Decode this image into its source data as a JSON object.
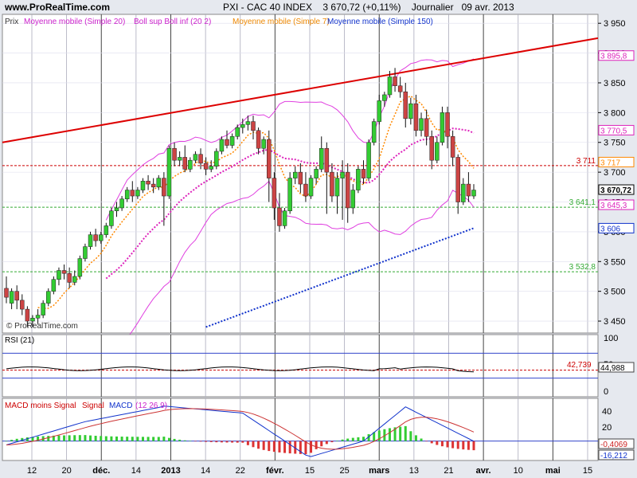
{
  "header": {
    "site": "www.ProRealTime.com",
    "symbol": "PXI - CAC 40 INDEX",
    "last": "3 670,72 (+0,11%)",
    "period": "Journalier",
    "date": "09 avr. 2013"
  },
  "watermark": "© ProRealTime.com",
  "legend": {
    "prix": "Prix",
    "mm20": "Moyenne mobile (Simple 20)",
    "boll": "Boll sup Boll inf (20 2)",
    "mm7": "Moyenne mobile (Simple 7)",
    "mm150": "Moyenne mobile (Simple 150)"
  },
  "colors": {
    "up": "#33cc33",
    "down": "#cc4444",
    "boll": "#e040e0",
    "mm20": "#dd22bb",
    "mm7": "#ff8800",
    "mm150": "#1133cc",
    "trend": "#dd0000"
  },
  "levels": {
    "r1": "3 711",
    "s1": "3 641,1",
    "s2": "3 532,8"
  },
  "axis_price": [
    "3 950",
    "3 900",
    "3 850",
    "3 800",
    "3 750",
    "3 700",
    "3 650",
    "3 600",
    "3 550",
    "3 500",
    "3 450"
  ],
  "axis_price_vals": [
    3950,
    3900,
    3850,
    3800,
    3750,
    3700,
    3650,
    3600,
    3550,
    3500,
    3450
  ],
  "price_tags": [
    {
      "text": "3 895,8",
      "value": 3895.8,
      "color": "#dd22bb"
    },
    {
      "text": "3 770,5",
      "value": 3770.5,
      "color": "#dd22bb"
    },
    {
      "text": "3 717",
      "value": 3717,
      "color": "#ff8800"
    },
    {
      "text": "3 670,72",
      "value": 3670.72,
      "color": "#000000"
    },
    {
      "text": "3 645,3",
      "value": 3645.3,
      "color": "#dd22bb"
    },
    {
      "text": "3 606",
      "value": 3606,
      "color": "#1133cc"
    }
  ],
  "rsi": {
    "label": "RSI (21)",
    "axis": [
      "100",
      "50",
      "0"
    ],
    "tag": "44,988",
    "level": "42,739"
  },
  "macd": {
    "label1": "MACD moins Signal",
    "label2": "Signal",
    "label3": "MACD",
    "label4": "(12 26 9)",
    "axis": [
      "40",
      "20",
      "0",
      "-20"
    ],
    "tag1": "-0,4069",
    "tag2": "-16,212"
  },
  "x_ticks": [
    {
      "label": "12",
      "bold": false
    },
    {
      "label": "20",
      "bold": false
    },
    {
      "label": "déc.",
      "bold": true
    },
    {
      "label": "14",
      "bold": false
    },
    {
      "label": "2013",
      "bold": true
    },
    {
      "label": "14",
      "bold": false
    },
    {
      "label": "22",
      "bold": false
    },
    {
      "label": "févr.",
      "bold": true
    },
    {
      "label": "15",
      "bold": false
    },
    {
      "label": "25",
      "bold": false
    },
    {
      "label": "mars",
      "bold": true
    },
    {
      "label": "13",
      "bold": false
    },
    {
      "label": "21",
      "bold": false
    },
    {
      "label": "avr.",
      "bold": true
    },
    {
      "label": "10",
      "bold": false
    },
    {
      "label": "mai",
      "bold": true
    },
    {
      "label": "15",
      "bold": false
    }
  ],
  "chart_data": {
    "type": "candlestick",
    "title": "PXI - CAC 40 INDEX 3 670,72 (+0,11%) Journalier 09 avr. 2013",
    "ylim": [
      3430,
      3965
    ],
    "candles": [
      [
        3505,
        3525,
        3490,
        3480
      ],
      [
        3480,
        3505,
        3500,
        3470
      ],
      [
        3500,
        3510,
        3485,
        3470
      ],
      [
        3485,
        3495,
        3470,
        3460
      ],
      [
        3470,
        3475,
        3450,
        3440
      ],
      [
        3450,
        3460,
        3455,
        3440
      ],
      [
        3455,
        3470,
        3460,
        3445
      ],
      [
        3460,
        3485,
        3480,
        3455
      ],
      [
        3480,
        3505,
        3500,
        3475
      ],
      [
        3500,
        3525,
        3520,
        3495
      ],
      [
        3520,
        3540,
        3535,
        3510
      ],
      [
        3535,
        3545,
        3530,
        3520
      ],
      [
        3530,
        3540,
        3515,
        3505
      ],
      [
        3515,
        3535,
        3525,
        3510
      ],
      [
        3525,
        3560,
        3555,
        3520
      ],
      [
        3555,
        3580,
        3575,
        3550
      ],
      [
        3575,
        3600,
        3595,
        3570
      ],
      [
        3595,
        3605,
        3585,
        3575
      ],
      [
        3585,
        3600,
        3595,
        3580
      ],
      [
        3595,
        3615,
        3610,
        3590
      ],
      [
        3610,
        3640,
        3635,
        3605
      ],
      [
        3635,
        3650,
        3640,
        3625
      ],
      [
        3640,
        3660,
        3655,
        3635
      ],
      [
        3655,
        3675,
        3670,
        3650
      ],
      [
        3670,
        3685,
        3660,
        3650
      ],
      [
        3660,
        3675,
        3670,
        3655
      ],
      [
        3670,
        3690,
        3685,
        3665
      ],
      [
        3685,
        3695,
        3680,
        3670
      ],
      [
        3680,
        3690,
        3675,
        3665
      ],
      [
        3675,
        3695,
        3690,
        3670
      ],
      [
        3690,
        3700,
        3660,
        3610
      ],
      [
        3660,
        3745,
        3740,
        3655
      ],
      [
        3740,
        3750,
        3720,
        3710
      ],
      [
        3720,
        3735,
        3725,
        3710
      ],
      [
        3725,
        3745,
        3705,
        3700
      ],
      [
        3705,
        3725,
        3720,
        3700
      ],
      [
        3720,
        3735,
        3730,
        3715
      ],
      [
        3730,
        3740,
        3715,
        3705
      ],
      [
        3715,
        3725,
        3705,
        3695
      ],
      [
        3705,
        3720,
        3710,
        3700
      ],
      [
        3710,
        3740,
        3735,
        3705
      ],
      [
        3735,
        3760,
        3755,
        3730
      ],
      [
        3755,
        3770,
        3745,
        3740
      ],
      [
        3745,
        3765,
        3760,
        3740
      ],
      [
        3760,
        3780,
        3775,
        3755
      ],
      [
        3775,
        3790,
        3780,
        3765
      ],
      [
        3780,
        3795,
        3785,
        3770
      ],
      [
        3785,
        3795,
        3770,
        3755
      ],
      [
        3770,
        3775,
        3740,
        3730
      ],
      [
        3740,
        3760,
        3755,
        3730
      ],
      [
        3755,
        3770,
        3690,
        3650
      ],
      [
        3690,
        3700,
        3640,
        3620
      ],
      [
        3640,
        3665,
        3610,
        3600
      ],
      [
        3610,
        3640,
        3635,
        3605
      ],
      [
        3635,
        3700,
        3690,
        3630
      ],
      [
        3690,
        3710,
        3700,
        3680
      ],
      [
        3700,
        3715,
        3680,
        3665
      ],
      [
        3680,
        3700,
        3660,
        3650
      ],
      [
        3660,
        3695,
        3690,
        3655
      ],
      [
        3690,
        3710,
        3705,
        3680
      ],
      [
        3705,
        3760,
        3740,
        3700
      ],
      [
        3740,
        3750,
        3700,
        3630
      ],
      [
        3700,
        3715,
        3660,
        3650
      ],
      [
        3660,
        3700,
        3690,
        3630
      ],
      [
        3690,
        3720,
        3700,
        3620
      ],
      [
        3700,
        3715,
        3640,
        3615
      ],
      [
        3640,
        3680,
        3670,
        3630
      ],
      [
        3670,
        3710,
        3705,
        3665
      ],
      [
        3705,
        3720,
        3690,
        3680
      ],
      [
        3690,
        3755,
        3750,
        3685
      ],
      [
        3750,
        3790,
        3785,
        3745
      ],
      [
        3785,
        3830,
        3820,
        3780
      ],
      [
        3820,
        3835,
        3830,
        3810
      ],
      [
        3830,
        3870,
        3860,
        3825
      ],
      [
        3860,
        3875,
        3845,
        3835
      ],
      [
        3845,
        3860,
        3835,
        3825
      ],
      [
        3835,
        3850,
        3790,
        3775
      ],
      [
        3790,
        3825,
        3815,
        3780
      ],
      [
        3815,
        3830,
        3770,
        3760
      ],
      [
        3770,
        3800,
        3790,
        3760
      ],
      [
        3790,
        3805,
        3760,
        3745
      ],
      [
        3760,
        3770,
        3720,
        3705
      ],
      [
        3720,
        3760,
        3750,
        3715
      ],
      [
        3750,
        3810,
        3800,
        3745
      ],
      [
        3800,
        3810,
        3760,
        3740
      ],
      [
        3760,
        3770,
        3725,
        3710
      ],
      [
        3725,
        3730,
        3650,
        3630
      ],
      [
        3650,
        3690,
        3680,
        3645
      ],
      [
        3680,
        3700,
        3660,
        3650
      ],
      [
        3660,
        3680,
        3670,
        3655
      ]
    ],
    "levels": [
      3711,
      3641.1,
      3532.8
    ],
    "rsi_ylim": [
      0,
      100
    ],
    "rsi_level": 42.739,
    "rsi_last": 44.988,
    "macd_ylim": [
      -25,
      55
    ],
    "macd_last": -0.4069,
    "signal_last": -16.212
  }
}
